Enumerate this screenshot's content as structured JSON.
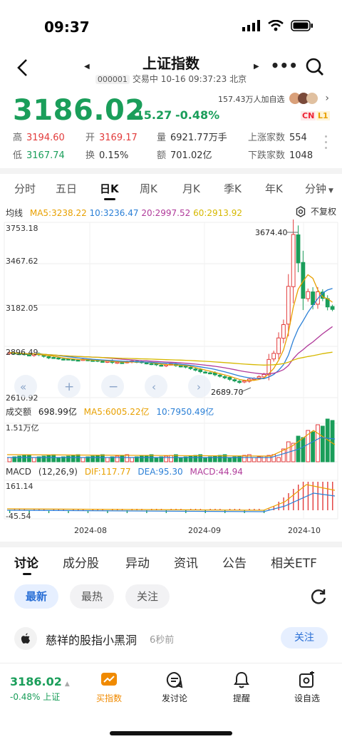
{
  "status": {
    "time": "09:37"
  },
  "nav": {
    "title": "上证指数",
    "code": "000001",
    "subtitle": "交易中 10-16 09:37:23 北京"
  },
  "quote": {
    "price": "3186.02",
    "change": "-15.27",
    "change_pct": "-0.48%",
    "watchers": "157.43万人加自选",
    "badge_cn": "CN",
    "badge_l1": "L1",
    "stats": [
      {
        "k": "高",
        "v": "3194.60"
      },
      {
        "k": "开",
        "v": "3169.17"
      },
      {
        "k": "量",
        "v": "6921.77万手"
      },
      {
        "k": "上涨家数",
        "v": "554"
      },
      {
        "k": "低",
        "v": "3167.74"
      },
      {
        "k": "换",
        "v": "0.15%"
      },
      {
        "k": "额",
        "v": "701.02亿"
      },
      {
        "k": "下跌家数",
        "v": "1048"
      }
    ]
  },
  "period_tabs": [
    "分时",
    "五日",
    "日K",
    "周K",
    "月K",
    "季K",
    "年K",
    "分钟"
  ],
  "period_active": "日K",
  "ma": {
    "label": "均线",
    "ma5": "MA5:3238.22",
    "ma10": "10:3236.47",
    "ma20": "20:2997.52",
    "ma60": "60:2913.92",
    "adjust": "不复权"
  },
  "price_axis": {
    "top": "3753.18",
    "upper": "3467.62",
    "mid": "3182.05",
    "lower": "2896.49",
    "bottom": "2610.92",
    "high_mark": "3674.40",
    "low_mark": "2689.70"
  },
  "volume": {
    "label": "成交额",
    "value": "698.99亿",
    "ma5": "MA5:6005.22亿",
    "ma10": "10:7950.49亿",
    "axis_top": "1.51万亿"
  },
  "macd": {
    "label": "MACD",
    "params": "(12,26,9)",
    "dif": "DIF:117.77",
    "dea": "DEA:95.30",
    "macd": "MACD:44.94",
    "axis_top": "161.14",
    "axis_bottom": "-45.54"
  },
  "time_axis": [
    "2024-08",
    "2024-09",
    "2024-10"
  ],
  "colors": {
    "up": "#e23b3b",
    "down": "#1a9e5a",
    "accent": "#2a6fd6",
    "orange": "#f08a00"
  },
  "chart_data": {
    "type": "candlestick",
    "series_note": "Shanghai Composite daily K-line",
    "y_range": [
      2610.92,
      3753.18
    ],
    "annotations": {
      "high": 3674.4,
      "low": 2689.7
    },
    "closes": [
      2905,
      2900,
      2895,
      2892,
      2888,
      2895,
      2890,
      2880,
      2870,
      2872,
      2865,
      2860,
      2862,
      2858,
      2855,
      2860,
      2856,
      2852,
      2850,
      2846,
      2848,
      2840,
      2842,
      2838,
      2845,
      2850,
      2843,
      2840,
      2835,
      2830,
      2825,
      2820,
      2825,
      2830,
      2820,
      2815,
      2810,
      2800,
      2790,
      2780,
      2775,
      2770,
      2760,
      2750,
      2740,
      2730,
      2720,
      2710,
      2720,
      2732,
      2736,
      2748,
      2762,
      2860,
      2900,
      3000,
      3087,
      3336,
      3674,
      3489,
      3258,
      3302,
      3217,
      3301,
      3258,
      3202,
      3186
    ]
  },
  "bottom_tabs": [
    "讨论",
    "成分股",
    "异动",
    "资讯",
    "公告",
    "相关ETF"
  ],
  "pills": [
    "最新",
    "最热",
    "关注"
  ],
  "post": {
    "author": "慈祥的股指小黑洞",
    "time": "6秒前",
    "follow": "关注"
  },
  "footer": {
    "price": "3186.02",
    "pct": "-0.48% 上证",
    "items": [
      "买指数",
      "发讨论",
      "提醒",
      "设自选"
    ]
  }
}
